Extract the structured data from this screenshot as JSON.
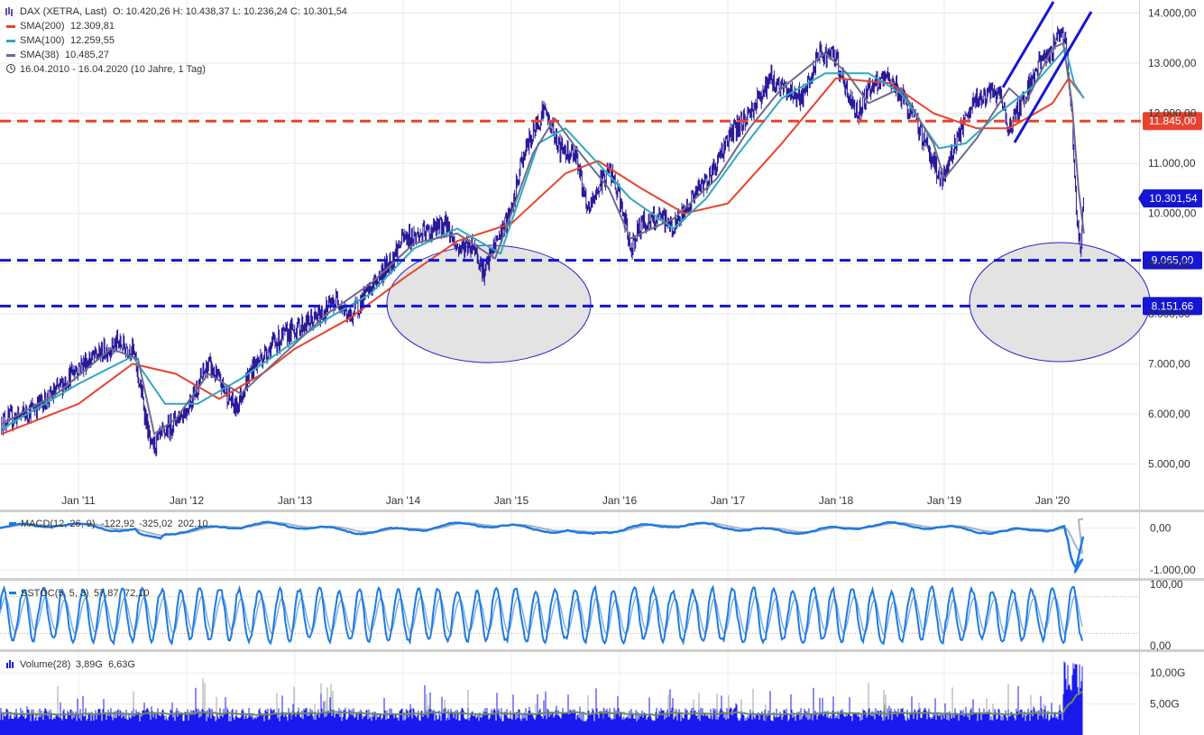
{
  "header": {
    "instrument": "DAX (XETRA, Last)",
    "ohlc": "O: 10.420,26   H: 10.438,37   L: 10.236,24   C: 10.301,54",
    "period": "16.04.2010 - 16.04.2020   (10 Jahre, 1 Tag)"
  },
  "colors": {
    "price": "#2a1a99",
    "sma200": "#e8432d",
    "sma100": "#2fa8c0",
    "sma38": "#6e6a8f",
    "hline_red": "#e8432d",
    "hline_blue": "#1515d4",
    "macd": "#1f7ae0",
    "signal": "#a9b4c4",
    "volume": "#1a1aee",
    "volume_avg": "#6b8e5a",
    "ellipse_fill": "#e3e3e3",
    "ellipse_stroke": "#2222cc"
  },
  "chart_data": [
    {
      "type": "line",
      "panel": "price",
      "x_ticks": [
        "Jan '11",
        "Jan '12",
        "Jan '13",
        "Jan '14",
        "Jan '15",
        "Jan '16",
        "Jan '17",
        "Jan '18",
        "Jan '19",
        "Jan '20"
      ],
      "y_ticks": [
        "14.000,00",
        "13.000,00",
        "12.000,00",
        "11.000,00",
        "10.000,00",
        "9.000,00",
        "8.000,00",
        "7.000,00",
        "6.000,00",
        "5.000,00"
      ],
      "ylim": [
        4500,
        14300
      ],
      "xlim": [
        2010.29,
        2020.79
      ],
      "price_series": {
        "x": [
          2010.29,
          2010.5,
          2010.75,
          2011.0,
          2011.2,
          2011.35,
          2011.5,
          2011.6,
          2011.67,
          2011.75,
          2011.9,
          2012.0,
          2012.2,
          2012.4,
          2012.45,
          2012.6,
          2012.8,
          2013.0,
          2013.2,
          2013.4,
          2013.5,
          2013.7,
          2013.9,
          2014.0,
          2014.2,
          2014.4,
          2014.5,
          2014.65,
          2014.75,
          2014.85,
          2015.0,
          2015.1,
          2015.3,
          2015.45,
          2015.6,
          2015.7,
          2015.8,
          2015.9,
          2016.0,
          2016.1,
          2016.2,
          2016.4,
          2016.5,
          2016.7,
          2016.85,
          2017.0,
          2017.2,
          2017.4,
          2017.5,
          2017.7,
          2017.85,
          2018.0,
          2018.1,
          2018.2,
          2018.3,
          2018.5,
          2018.7,
          2018.85,
          2018.98,
          2019.1,
          2019.3,
          2019.5,
          2019.6,
          2019.75,
          2019.9,
          2020.0,
          2020.05,
          2020.12,
          2020.18,
          2020.22,
          2020.26,
          2020.29
        ],
        "y": [
          5850,
          6000,
          6350,
          6950,
          7200,
          7400,
          7300,
          6200,
          5300,
          5500,
          5900,
          6100,
          7000,
          6300,
          6100,
          6900,
          7400,
          7700,
          7900,
          8300,
          7900,
          8500,
          9100,
          9500,
          9600,
          9800,
          9300,
          9400,
          8800,
          9400,
          10000,
          11100,
          12100,
          11300,
          11200,
          10000,
          10500,
          10900,
          10300,
          9300,
          9800,
          9900,
          9700,
          10400,
          10800,
          11500,
          12000,
          12700,
          12500,
          12300,
          13200,
          13100,
          12400,
          12000,
          12500,
          12700,
          12000,
          11300,
          10600,
          11400,
          12300,
          12400,
          11700,
          12400,
          13100,
          13200,
          13700,
          13500,
          12000,
          10000,
          9200,
          10300
        ]
      },
      "sma200": {
        "x": [
          2010.29,
          2011.0,
          2011.5,
          2011.9,
          2012.3,
          2012.7,
          2013.0,
          2013.5,
          2014.0,
          2014.5,
          2015.0,
          2015.5,
          2015.8,
          2016.2,
          2016.6,
          2017.0,
          2017.5,
          2018.0,
          2018.5,
          2018.9,
          2019.3,
          2019.6,
          2020.0,
          2020.15,
          2020.29
        ],
        "y": [
          5600,
          6200,
          7000,
          6800,
          6300,
          6800,
          7300,
          7900,
          8700,
          9450,
          9800,
          10800,
          11050,
          10500,
          10000,
          10200,
          11400,
          12700,
          12600,
          12000,
          11700,
          11700,
          12200,
          12700,
          12300
        ]
      },
      "sma100": {
        "x": [
          2010.29,
          2011.0,
          2011.5,
          2011.8,
          2012.1,
          2012.5,
          2012.9,
          2013.3,
          2013.7,
          2014.1,
          2014.5,
          2014.9,
          2015.25,
          2015.5,
          2015.8,
          2016.1,
          2016.5,
          2016.8,
          2017.1,
          2017.5,
          2017.9,
          2018.3,
          2018.6,
          2018.95,
          2019.2,
          2019.5,
          2019.8,
          2020.0,
          2020.12,
          2020.2,
          2020.29
        ],
        "y": [
          5700,
          6600,
          7150,
          6200,
          6200,
          6700,
          7300,
          7900,
          8400,
          9300,
          9700,
          9200,
          11400,
          11700,
          11000,
          10300,
          9700,
          10300,
          11200,
          12300,
          12800,
          12800,
          12400,
          11300,
          11400,
          12000,
          12500,
          13000,
          13300,
          12600,
          12300
        ]
      },
      "sma38": {
        "x": [
          2010.29,
          2010.8,
          2011.3,
          2011.55,
          2011.7,
          2011.9,
          2012.2,
          2012.5,
          2012.9,
          2013.3,
          2013.7,
          2014.1,
          2014.5,
          2014.85,
          2015.2,
          2015.4,
          2015.6,
          2015.9,
          2016.1,
          2016.5,
          2016.9,
          2017.2,
          2017.5,
          2017.9,
          2018.1,
          2018.3,
          2018.6,
          2018.9,
          2019.0,
          2019.3,
          2019.6,
          2019.75,
          2020.0,
          2020.1,
          2020.18,
          2020.24,
          2020.29
        ],
        "y": [
          5800,
          6400,
          7300,
          7100,
          5600,
          5900,
          6800,
          6400,
          7200,
          8000,
          8600,
          9400,
          9600,
          9100,
          11200,
          11900,
          11300,
          10500,
          9500,
          9900,
          10700,
          11700,
          12500,
          13200,
          12800,
          12200,
          12500,
          11400,
          10700,
          11500,
          12500,
          12200,
          13300,
          13400,
          12200,
          10500,
          9600
        ]
      },
      "horizontal_lines": [
        {
          "value": 11845.0,
          "label": "11.845,00",
          "color": "red"
        },
        {
          "value": 9065.0,
          "label": "9.065,00",
          "color": "blue"
        },
        {
          "value": 8151.66,
          "label": "8.151,66",
          "color": "blue"
        }
      ],
      "last_price_label": "10.301,54",
      "legend": [
        {
          "label": "SMA(200)",
          "value": "12.309,81"
        },
        {
          "label": "SMA(100)",
          "value": "12.259,55"
        },
        {
          "label": "SMA(38)",
          "value": "10.485,27"
        }
      ]
    },
    {
      "type": "line",
      "panel": "macd",
      "legend_label": "MACD(12, 26, 9)",
      "values_text": [
        "-122,92",
        "-325,02",
        "202,10"
      ],
      "y_ticks": [
        "0,00",
        "-1.000,00"
      ],
      "ylim": [
        -1150,
        250
      ]
    },
    {
      "type": "line",
      "panel": "sstoc",
      "legend_label": "SSTOC(5, 5, 3)",
      "values_text": [
        "57,87",
        "72,10"
      ],
      "y_ticks": [
        "100,00",
        "0,00"
      ],
      "ylim": [
        -5,
        105
      ],
      "levels": [
        80,
        20
      ]
    },
    {
      "type": "bar",
      "panel": "volume",
      "legend_label": "Volume(28)",
      "values_text": [
        "3,89G",
        "6,63G"
      ],
      "y_ticks": [
        "10,00G",
        "5,00G"
      ],
      "ylim": [
        0,
        12.5
      ]
    }
  ]
}
